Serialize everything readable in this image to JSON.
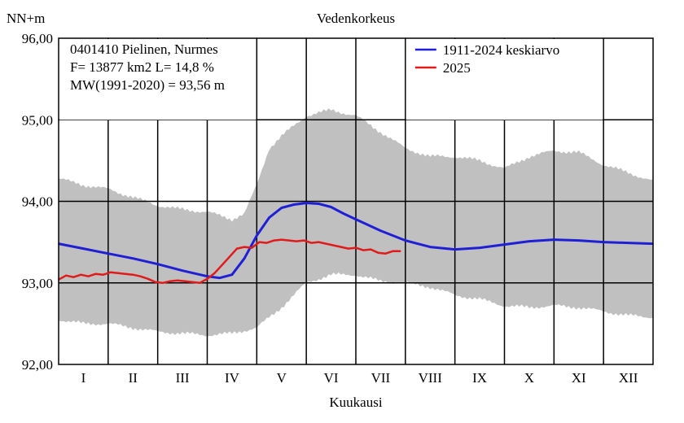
{
  "chart_data": {
    "type": "line",
    "title": "Vedenkorkeus",
    "ylabel": "NN+m",
    "xlabel": "Kuukausi",
    "ylim": [
      92.0,
      96.0
    ],
    "xlim": [
      0,
      12
    ],
    "yticks": [
      "92,00",
      "93,00",
      "94,00",
      "95,00",
      "96,00"
    ],
    "yticks_values": [
      92,
      93,
      94,
      95,
      96
    ],
    "xticks": [
      "I",
      "II",
      "III",
      "IV",
      "V",
      "VI",
      "VII",
      "VIII",
      "IX",
      "X",
      "XI",
      "XII"
    ],
    "grid": true,
    "info_lines": [
      "0401410 Pielinen, Nurmes",
      "F=  13877 km2 L=  14,8 %",
      "MW(1991-2020) = 93,56 m"
    ],
    "legend_position": "top-right",
    "legend": [
      {
        "name": "1911-2024 keskiarvo",
        "color": "#1f1fd6"
      },
      {
        "name": "2025",
        "color": "#e01b1b"
      }
    ],
    "range_band": {
      "color": "#c0c0c0",
      "upper": [
        [
          0,
          94.28
        ],
        [
          0.5,
          94.2
        ],
        [
          1,
          94.15
        ],
        [
          1.5,
          94.05
        ],
        [
          2,
          93.95
        ],
        [
          2.5,
          93.9
        ],
        [
          3,
          93.87
        ],
        [
          3.5,
          93.78
        ],
        [
          3.75,
          93.85
        ],
        [
          4,
          94.2
        ],
        [
          4.25,
          94.65
        ],
        [
          4.5,
          94.8
        ],
        [
          5,
          95.05
        ],
        [
          5.5,
          95.12
        ],
        [
          6,
          95.05
        ],
        [
          6.5,
          94.85
        ],
        [
          7,
          94.65
        ],
        [
          7.5,
          94.55
        ],
        [
          8,
          94.55
        ],
        [
          8.5,
          94.5
        ],
        [
          9,
          94.4
        ],
        [
          9.5,
          94.55
        ],
        [
          10,
          94.62
        ],
        [
          10.5,
          94.6
        ],
        [
          11,
          94.45
        ],
        [
          11.5,
          94.35
        ],
        [
          12,
          94.25
        ]
      ],
      "lower": [
        [
          0,
          92.55
        ],
        [
          0.5,
          92.5
        ],
        [
          1,
          92.5
        ],
        [
          1.5,
          92.45
        ],
        [
          2,
          92.4
        ],
        [
          2.5,
          92.38
        ],
        [
          3,
          92.36
        ],
        [
          3.5,
          92.38
        ],
        [
          4,
          92.45
        ],
        [
          4.5,
          92.7
        ],
        [
          5,
          93.0
        ],
        [
          5.5,
          93.1
        ],
        [
          6,
          93.1
        ],
        [
          6.5,
          93.02
        ],
        [
          7,
          93.0
        ],
        [
          7.5,
          92.95
        ],
        [
          8,
          92.85
        ],
        [
          8.5,
          92.8
        ],
        [
          9,
          92.72
        ],
        [
          9.5,
          92.7
        ],
        [
          10,
          92.72
        ],
        [
          10.5,
          92.7
        ],
        [
          11,
          92.65
        ],
        [
          11.5,
          92.6
        ],
        [
          12,
          92.58
        ]
      ]
    },
    "series": [
      {
        "name": "1911-2024 keskiarvo",
        "color": "#1f1fd6",
        "x": [
          0,
          0.5,
          1,
          1.5,
          2,
          2.5,
          3,
          3.25,
          3.5,
          3.75,
          4,
          4.25,
          4.5,
          4.75,
          5,
          5.25,
          5.5,
          5.75,
          6,
          6.5,
          7,
          7.5,
          8,
          8.5,
          9,
          9.5,
          10,
          10.5,
          11,
          11.5,
          12
        ],
        "values": [
          93.48,
          93.42,
          93.36,
          93.3,
          93.23,
          93.15,
          93.08,
          93.06,
          93.1,
          93.3,
          93.58,
          93.8,
          93.92,
          93.96,
          93.98,
          93.97,
          93.93,
          93.85,
          93.78,
          93.64,
          93.52,
          93.44,
          93.41,
          93.43,
          93.47,
          93.51,
          93.53,
          93.52,
          93.5,
          93.49,
          93.48
        ]
      },
      {
        "name": "2025",
        "color": "#e01b1b",
        "x": [
          0,
          0.15,
          0.3,
          0.45,
          0.6,
          0.75,
          0.9,
          1.05,
          1.2,
          1.35,
          1.5,
          1.65,
          1.8,
          1.95,
          2.1,
          2.25,
          2.4,
          2.55,
          2.7,
          2.85,
          3.0,
          3.15,
          3.3,
          3.45,
          3.6,
          3.75,
          3.9,
          4.05,
          4.2,
          4.35,
          4.5,
          4.65,
          4.8,
          4.95,
          5.1,
          5.25,
          5.4,
          5.55,
          5.7,
          5.85,
          6.0,
          6.15,
          6.3,
          6.45,
          6.6,
          6.75,
          6.9
        ],
        "values": [
          93.04,
          93.09,
          93.07,
          93.1,
          93.08,
          93.11,
          93.1,
          93.13,
          93.12,
          93.11,
          93.1,
          93.08,
          93.05,
          93.01,
          93.0,
          93.02,
          93.03,
          93.02,
          93.01,
          93.0,
          93.05,
          93.12,
          93.22,
          93.32,
          93.42,
          93.44,
          93.43,
          93.5,
          93.49,
          93.52,
          93.53,
          93.52,
          93.51,
          93.52,
          93.49,
          93.5,
          93.48,
          93.46,
          93.44,
          93.42,
          93.43,
          93.4,
          93.41,
          93.37,
          93.36,
          93.39,
          93.39
        ]
      }
    ]
  }
}
